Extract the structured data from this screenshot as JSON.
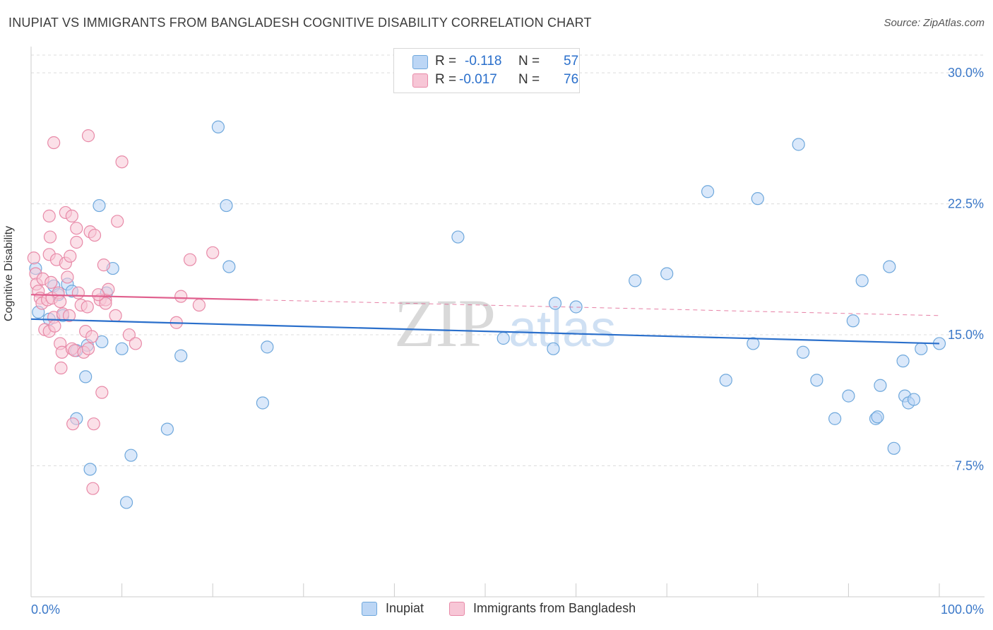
{
  "title": "INUPIAT VS IMMIGRANTS FROM BANGLADESH COGNITIVE DISABILITY CORRELATION CHART",
  "source": "Source: ZipAtlas.com",
  "watermark": {
    "zip": "ZIP",
    "atlas": "atlas"
  },
  "legend": {
    "r_label": "R =",
    "n_label": "N =",
    "series": [
      {
        "name": "Inupiat",
        "r": "-0.118",
        "n": "57",
        "color": "#6fa8dc",
        "fill": "#bcd6f5",
        "line": "#2a6fcb"
      },
      {
        "name": "Immigrants from Bangladesh",
        "r": "-0.017",
        "n": "76",
        "color": "#e88aa8",
        "fill": "#f7c6d6",
        "line": "#e0608e"
      }
    ]
  },
  "chart_data": {
    "type": "scatter",
    "title": "INUPIAT VS IMMIGRANTS FROM BANGLADESH COGNITIVE DISABILITY CORRELATION CHART",
    "xlabel": "",
    "ylabel": "Cognitive Disability",
    "xlim": [
      0,
      100
    ],
    "ylim": [
      0,
      31.5
    ],
    "x_tick_labels": [
      "0.0%",
      "100.0%"
    ],
    "y_ticks": [
      7.5,
      15.0,
      22.5,
      30.0
    ],
    "y_tick_labels": [
      "7.5%",
      "15.0%",
      "22.5%",
      "30.0%"
    ],
    "grid": "dashed horizontal",
    "legend_position": "top-center",
    "series": [
      {
        "name": "Inupiat",
        "trend": {
          "x": [
            0,
            100
          ],
          "y": [
            15.9,
            14.5
          ],
          "dashed_from": null
        },
        "points": [
          [
            0.5,
            18.8
          ],
          [
            0.8,
            16.3
          ],
          [
            2,
            15.9
          ],
          [
            2.5,
            17.8
          ],
          [
            3,
            17.3
          ],
          [
            3.5,
            16.1
          ],
          [
            4,
            17.9
          ],
          [
            4.5,
            17.5
          ],
          [
            5,
            14.1
          ],
          [
            5,
            10.2
          ],
          [
            6,
            12.6
          ],
          [
            6.2,
            14.4
          ],
          [
            6.5,
            7.3
          ],
          [
            7.5,
            22.4
          ],
          [
            7.8,
            14.6
          ],
          [
            8.3,
            17.4
          ],
          [
            9,
            18.8
          ],
          [
            10,
            14.2
          ],
          [
            10.5,
            5.4
          ],
          [
            11,
            8.1
          ],
          [
            15,
            9.6
          ],
          [
            16.5,
            13.8
          ],
          [
            20.6,
            26.9
          ],
          [
            21.5,
            22.4
          ],
          [
            21.8,
            18.9
          ],
          [
            25.5,
            11.1
          ],
          [
            26,
            14.3
          ],
          [
            47,
            20.6
          ],
          [
            52,
            14.8
          ],
          [
            57.5,
            14.2
          ],
          [
            57.7,
            16.8
          ],
          [
            60,
            16.6
          ],
          [
            66.5,
            18.1
          ],
          [
            70,
            18.5
          ],
          [
            74.5,
            23.2
          ],
          [
            76.5,
            12.4
          ],
          [
            79.5,
            14.5
          ],
          [
            80,
            22.8
          ],
          [
            84.5,
            25.9
          ],
          [
            85,
            14.0
          ],
          [
            86.5,
            12.4
          ],
          [
            88.5,
            10.2
          ],
          [
            90,
            11.5
          ],
          [
            90.5,
            15.8
          ],
          [
            91.5,
            18.1
          ],
          [
            93,
            10.2
          ],
          [
            93.2,
            10.3
          ],
          [
            93.5,
            12.1
          ],
          [
            94.5,
            18.9
          ],
          [
            95,
            8.5
          ],
          [
            96,
            13.5
          ],
          [
            96.2,
            11.5
          ],
          [
            96.6,
            11.1
          ],
          [
            97.2,
            11.3
          ],
          [
            98,
            14.2
          ],
          [
            100,
            14.5
          ]
        ]
      },
      {
        "name": "Immigrants from Bangladesh",
        "trend": {
          "x": [
            0,
            100
          ],
          "y": [
            17.3,
            16.1
          ],
          "dashed_from": 25
        },
        "points": [
          [
            0.3,
            19.4
          ],
          [
            0.5,
            18.5
          ],
          [
            0.6,
            17.9
          ],
          [
            0.8,
            17.5
          ],
          [
            1.0,
            17.1
          ],
          [
            1.2,
            16.8
          ],
          [
            1.3,
            18.2
          ],
          [
            1.5,
            15.3
          ],
          [
            1.8,
            17.0
          ],
          [
            2.0,
            15.2
          ],
          [
            2.0,
            19.6
          ],
          [
            2.0,
            21.8
          ],
          [
            2.1,
            20.6
          ],
          [
            2.2,
            18.0
          ],
          [
            2.3,
            17.1
          ],
          [
            2.5,
            16.0
          ],
          [
            2.5,
            26.0
          ],
          [
            2.6,
            15.5
          ],
          [
            2.8,
            19.3
          ],
          [
            3.0,
            17.4
          ],
          [
            3.2,
            14.5
          ],
          [
            3.2,
            16.9
          ],
          [
            3.3,
            13.1
          ],
          [
            3.4,
            14.0
          ],
          [
            3.5,
            16.2
          ],
          [
            3.8,
            19.1
          ],
          [
            3.8,
            22.0
          ],
          [
            4.0,
            18.3
          ],
          [
            4.2,
            16.1
          ],
          [
            4.3,
            19.5
          ],
          [
            4.5,
            21.8
          ],
          [
            4.5,
            14.2
          ],
          [
            4.6,
            9.9
          ],
          [
            4.8,
            14.1
          ],
          [
            5.0,
            20.3
          ],
          [
            5.0,
            21.1
          ],
          [
            5.2,
            17.4
          ],
          [
            5.5,
            16.7
          ],
          [
            5.8,
            14.0
          ],
          [
            6.0,
            15.2
          ],
          [
            6.2,
            16.6
          ],
          [
            6.3,
            14.2
          ],
          [
            6.3,
            26.4
          ],
          [
            6.5,
            20.9
          ],
          [
            6.7,
            14.9
          ],
          [
            6.8,
            6.2
          ],
          [
            6.9,
            9.9
          ],
          [
            7.0,
            20.7
          ],
          [
            7.6,
            17.0
          ],
          [
            7.8,
            11.7
          ],
          [
            8.0,
            19.0
          ],
          [
            8.2,
            17.0
          ],
          [
            8.2,
            16.8
          ],
          [
            8.5,
            17.6
          ],
          [
            9.3,
            16.1
          ],
          [
            9.5,
            21.5
          ],
          [
            10.0,
            24.9
          ],
          [
            10.8,
            15.0
          ],
          [
            11.5,
            14.5
          ],
          [
            16.0,
            15.7
          ],
          [
            16.5,
            17.2
          ],
          [
            17.5,
            19.3
          ],
          [
            18.5,
            16.7
          ],
          [
            20.0,
            19.7
          ],
          [
            7.4,
            17.3
          ]
        ]
      }
    ]
  }
}
